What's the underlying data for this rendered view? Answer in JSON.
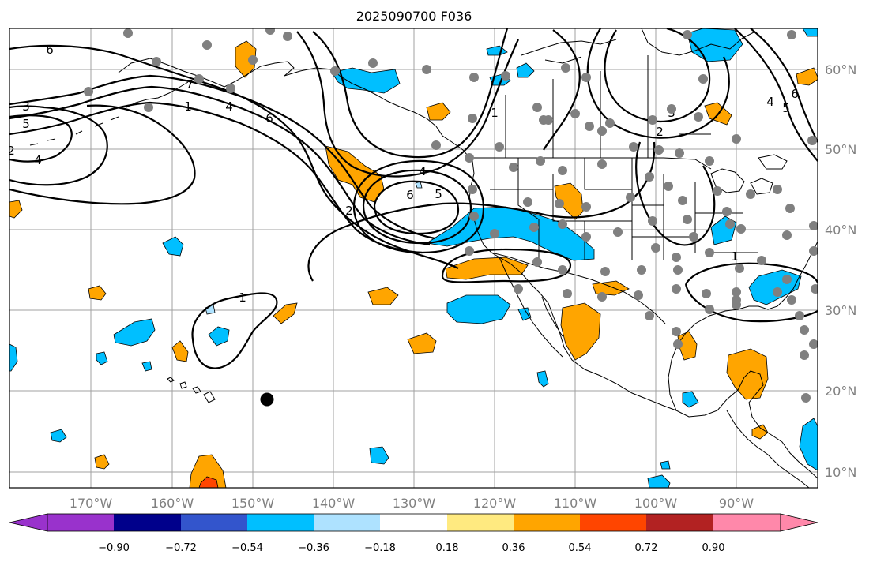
{
  "title": "2025090700 F036",
  "lon_labels": [
    "170°W",
    "160°W",
    "150°W",
    "140°W",
    "130°W",
    "120°W",
    "110°W",
    "100°W",
    "90°W"
  ],
  "lat_labels": [
    "60°N",
    "50°N",
    "40°N",
    "30°N",
    "20°N",
    "10°N"
  ],
  "contour_labels": [
    "6",
    "3",
    "5",
    "4",
    "7",
    "1",
    "4",
    "6",
    "2",
    "4",
    "6",
    "5",
    "1",
    "3",
    "2",
    "4",
    "5",
    "6",
    "1",
    "2",
    "1"
  ],
  "colorbar": {
    "ticks": [
      "−0.90",
      "−0.72",
      "−0.54",
      "−0.36",
      "−0.18",
      "0.18",
      "0.36",
      "0.54",
      "0.72",
      "0.90"
    ],
    "colors": [
      "#9932cc",
      "#00008b",
      "#3355cc",
      "#00bfff",
      "#aee2ff",
      "#ffffff",
      "#ffea80",
      "#ffa500",
      "#ff4500",
      "#b22222",
      "#ff88aa",
      "#ff88aa"
    ]
  },
  "colors": {
    "positive": "#ffa500",
    "strong_positive": "#ff4500",
    "negative": "#00bfff",
    "light_negative": "#aee2ff",
    "station": "#808080",
    "marker": "#000000"
  }
}
